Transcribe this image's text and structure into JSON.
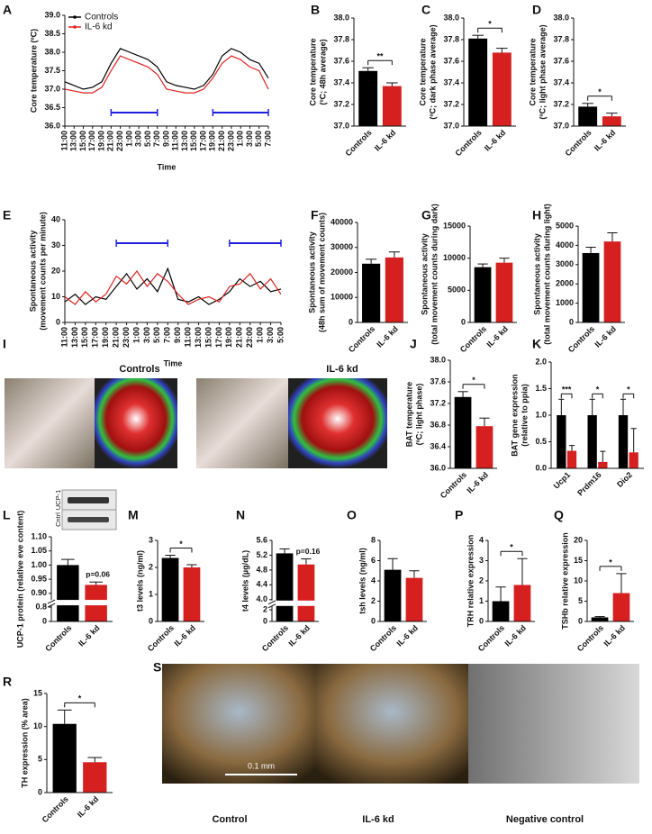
{
  "chart_data": [
    {
      "type": "line",
      "panel": "A",
      "y_label": [
        "Core temperature (ºC)"
      ],
      "x_label": "Time",
      "legend": "top-left",
      "categories": [
        "11:00",
        "13:00",
        "15:00",
        "17:00",
        "19:00",
        "21:00",
        "23:00",
        "1:00",
        "3:00",
        "5:00",
        "7:00",
        "9:00",
        "11:00",
        "13:00",
        "15:00",
        "17:00",
        "19:00",
        "21:00",
        "23:00",
        "1:00",
        "3:00",
        "5:00",
        "7:00"
      ],
      "series": [
        {
          "name": "Controls",
          "color": "#000000",
          "values": [
            37.2,
            37.1,
            37.0,
            37.05,
            37.2,
            37.7,
            38.1,
            38.0,
            37.9,
            37.8,
            37.6,
            37.2,
            37.1,
            37.05,
            37.0,
            37.1,
            37.4,
            37.9,
            38.1,
            38.0,
            37.8,
            37.7,
            37.3
          ]
        },
        {
          "name": "IL-6 kd",
          "color": "#e02020",
          "values": [
            37.0,
            36.95,
            36.9,
            36.9,
            37.05,
            37.5,
            37.9,
            37.8,
            37.7,
            37.6,
            37.4,
            37.0,
            36.95,
            36.9,
            36.9,
            37.0,
            37.3,
            37.7,
            37.9,
            37.8,
            37.6,
            37.5,
            37.0
          ]
        }
      ],
      "ylim": [
        36.0,
        39.0
      ],
      "yticks": [
        {
          "value": 36.0,
          "label": "36.0"
        },
        {
          "value": 36.5,
          "label": "36.5"
        },
        {
          "value": 37.0,
          "label": "37.0"
        },
        {
          "value": 37.5,
          "label": "37.5"
        },
        {
          "value": 38.0,
          "label": "38.0"
        },
        {
          "value": 38.5,
          "label": "38.5"
        },
        {
          "value": 39.0,
          "label": "39.0"
        }
      ]
    },
    {
      "type": "bar",
      "panel": "B",
      "y_label": [
        "Core temperature",
        "(ºC; 48h average)"
      ],
      "categories": [
        "Controls",
        "IL-6 kd"
      ],
      "values": [
        37.51,
        37.37
      ],
      "errors": [
        0.03,
        0.03
      ],
      "colors": [
        "#000000",
        "#d62020"
      ],
      "significance": "**",
      "ylim": [
        37.0,
        38.0
      ],
      "yticks": [
        {
          "value": 37.0,
          "label": "37.0"
        },
        {
          "value": 37.2,
          "label": "37.2"
        },
        {
          "value": 37.4,
          "label": "37.4"
        },
        {
          "value": 37.6,
          "label": "37.6"
        },
        {
          "value": 37.8,
          "label": "37.8"
        },
        {
          "value": 38.0,
          "label": "38.0"
        }
      ]
    },
    {
      "type": "bar",
      "panel": "C",
      "y_label": [
        "Core temperature",
        "(ºC; dark phase average)"
      ],
      "categories": [
        "Controls",
        "IL-6 kd"
      ],
      "values": [
        37.81,
        37.68
      ],
      "errors": [
        0.03,
        0.04
      ],
      "colors": [
        "#000000",
        "#d62020"
      ],
      "significance": "*",
      "ylim": [
        37.0,
        38.0
      ],
      "yticks": [
        {
          "value": 37.0,
          "label": "37.0"
        },
        {
          "value": 37.2,
          "label": "37.2"
        },
        {
          "value": 37.4,
          "label": "37.4"
        },
        {
          "value": 37.6,
          "label": "37.6"
        },
        {
          "value": 37.8,
          "label": "37.8"
        },
        {
          "value": 38.0,
          "label": "38.0"
        }
      ]
    },
    {
      "type": "bar",
      "panel": "D",
      "y_label": [
        "Core temperature",
        "(ºC; light phase average)"
      ],
      "categories": [
        "Controls",
        "IL-6 kd"
      ],
      "values": [
        37.18,
        37.09
      ],
      "errors": [
        0.03,
        0.03
      ],
      "colors": [
        "#000000",
        "#d62020"
      ],
      "significance": "*",
      "ylim": [
        37.0,
        38.0
      ],
      "yticks": [
        {
          "value": 37.0,
          "label": "37.0"
        },
        {
          "value": 37.2,
          "label": "37.2"
        },
        {
          "value": 37.4,
          "label": "37.4"
        },
        {
          "value": 37.6,
          "label": "37.6"
        },
        {
          "value": 37.8,
          "label": "37.8"
        },
        {
          "value": 38.0,
          "label": "38.0"
        }
      ]
    },
    {
      "type": "line",
      "panel": "E",
      "y_label": [
        "Spontaneous activity",
        "(movement counts per minute)"
      ],
      "x_label": "Time",
      "categories": [
        "11:00",
        "13:00",
        "15:00",
        "17:00",
        "19:00",
        "21:00",
        "23:00",
        "1:00",
        "3:00",
        "5:00",
        "7:00",
        "9:00",
        "11:00",
        "13:00",
        "15:00",
        "17:00",
        "19:00",
        "21:00",
        "23:00",
        "1:00",
        "3:00",
        "5:00"
      ],
      "series": [
        {
          "name": "Controls",
          "color": "#000000",
          "values": [
            8,
            11,
            7,
            10,
            9,
            14,
            19,
            13,
            17,
            12,
            21,
            9,
            8,
            10,
            7,
            9,
            12,
            17,
            14,
            16,
            12,
            13
          ]
        },
        {
          "name": "IL-6 kd",
          "color": "#e02020",
          "values": [
            10,
            7,
            12,
            8,
            11,
            18,
            15,
            20,
            14,
            19,
            16,
            11,
            7,
            9,
            10,
            8,
            14,
            15,
            19,
            13,
            17,
            11
          ]
        }
      ],
      "ylim": [
        0,
        40
      ],
      "yticks": [
        0,
        10,
        20,
        30,
        40
      ]
    },
    {
      "type": "bar",
      "panel": "F",
      "y_label": [
        "Spontaneous activity",
        "(48h sum of movement counts)"
      ],
      "categories": [
        "Controls",
        "IL-6 kd"
      ],
      "values": [
        23500,
        26000
      ],
      "errors": [
        1800,
        2200
      ],
      "colors": [
        "#000000",
        "#d62020"
      ],
      "ylim": [
        0,
        40000
      ],
      "yticks": [
        0,
        10000,
        20000,
        30000,
        40000
      ]
    },
    {
      "type": "bar",
      "panel": "G",
      "y_label": [
        "Spontaneous activity",
        "(total movement counts during dark)"
      ],
      "categories": [
        "Controls",
        "IL-6 kd"
      ],
      "values": [
        8600,
        9300
      ],
      "errors": [
        500,
        700
      ],
      "colors": [
        "#000000",
        "#d62020"
      ],
      "ylim": [
        0,
        15000
      ],
      "yticks": [
        0,
        5000,
        10000,
        15000
      ]
    },
    {
      "type": "bar",
      "panel": "H",
      "y_label": [
        "Spontaneous activity",
        "(total movement counts during light)"
      ],
      "categories": [
        "Controls",
        "IL-6 kd"
      ],
      "values": [
        3600,
        4200
      ],
      "errors": [
        300,
        450
      ],
      "colors": [
        "#000000",
        "#d62020"
      ],
      "ylim": [
        0,
        5000
      ],
      "yticks": [
        0,
        1000,
        2000,
        3000,
        4000,
        5000
      ]
    },
    {
      "type": "bar",
      "panel": "J",
      "y_label": [
        "BAT temperature",
        "(ºC; light phase)"
      ],
      "categories": [
        "Controls",
        "IL-6 kd"
      ],
      "values": [
        37.32,
        36.78
      ],
      "errors": [
        0.1,
        0.15
      ],
      "colors": [
        "#000000",
        "#d62020"
      ],
      "significance": "*",
      "ylim": [
        36.0,
        38.0
      ],
      "yticks": [
        {
          "value": 36.0,
          "label": "36.0"
        },
        {
          "value": 36.4,
          "label": "36.4"
        },
        {
          "value": 36.8,
          "label": "36.8"
        },
        {
          "value": 37.2,
          "label": "37.2"
        },
        {
          "value": 37.6,
          "label": "37.6"
        },
        {
          "value": 38.0,
          "label": "38.0"
        }
      ]
    },
    {
      "type": "bar",
      "panel": "K",
      "y_label": [
        "BAT gene expression",
        "(relative to ppia)"
      ],
      "categories": [
        "Ucp1",
        "Prdm16",
        "Dio2"
      ],
      "series": [
        {
          "name": "Controls",
          "color": "#000000",
          "values": [
            1.0,
            1.0,
            1.0
          ],
          "errors": [
            0.3,
            0.3,
            0.3
          ]
        },
        {
          "name": "IL-6 kd",
          "color": "#d62020",
          "values": [
            0.33,
            0.12,
            0.3
          ],
          "errors": [
            0.1,
            0.2,
            0.45
          ]
        }
      ],
      "significance": [
        "***",
        "*",
        "*"
      ],
      "ylim": [
        0,
        2.0
      ],
      "yticks": [
        {
          "value": 0,
          "label": "0.0"
        },
        {
          "value": 0.5,
          "label": "0.5"
        },
        {
          "value": 1.0,
          "label": "1.0"
        },
        {
          "value": 1.5,
          "label": "1.5"
        },
        {
          "value": 2.0,
          "label": "2.0"
        }
      ]
    },
    {
      "type": "bar",
      "panel": "L",
      "y_label": [
        "UCP-1 protein (relative eve content)"
      ],
      "categories": [
        "Controls",
        "IL-6 kd"
      ],
      "values": [
        1.0,
        0.93
      ],
      "errors": [
        0.02,
        0.01
      ],
      "colors": [
        "#000000",
        "#d62020"
      ],
      "annotation": "p=0.06",
      "inset_labels": [
        "UCP-1",
        "Cntrl"
      ],
      "ylim": [
        0.88,
        1.1
      ],
      "yticks": [
        {
          "value": 0.9,
          "label": "0.90"
        },
        {
          "value": 0.95,
          "label": "0.95"
        },
        {
          "value": 1.0,
          "label": "1.00"
        },
        {
          "value": 1.05,
          "label": "1.05"
        },
        {
          "value": 1.1,
          "label": "1.10"
        }
      ],
      "ylim_lower": [
        0,
        0.85
      ],
      "yticks_lower": [
        0,
        0.8
      ]
    },
    {
      "type": "bar",
      "panel": "M",
      "y_label": [
        "t3 levels (ng/ml)"
      ],
      "categories": [
        "Controls",
        "IL-6 kd"
      ],
      "values": [
        2.35,
        2.0
      ],
      "errors": [
        0.1,
        0.1
      ],
      "colors": [
        "#000000",
        "#d62020"
      ],
      "significance": "*",
      "ylim": [
        0,
        3
      ],
      "yticks": [
        0,
        1,
        2,
        3
      ]
    },
    {
      "type": "bar",
      "panel": "N",
      "y_label": [
        "t4 levels (µg/dL)"
      ],
      "categories": [
        "Controls",
        "IL-6 kd"
      ],
      "values": [
        5.25,
        4.95
      ],
      "errors": [
        0.12,
        0.15
      ],
      "colors": [
        "#000000",
        "#d62020"
      ],
      "annotation": "p=0.16",
      "ylim": [
        4.0,
        5.6
      ],
      "yticks": [
        {
          "value": 4.0,
          "label": "4.0"
        },
        {
          "value": 4.4,
          "label": "4.4"
        },
        {
          "value": 4.8,
          "label": "4.8"
        },
        {
          "value": 5.2,
          "label": "5.2"
        },
        {
          "value": 5.6,
          "label": "5.6"
        }
      ],
      "ylim_lower": [
        0,
        2.5
      ],
      "yticks_lower": [
        0,
        2
      ]
    },
    {
      "type": "bar",
      "panel": "O",
      "y_label": [
        "tsh levels (ng/ml)"
      ],
      "categories": [
        "Controls",
        "IL-6 kd"
      ],
      "values": [
        5.1,
        4.3
      ],
      "errors": [
        1.1,
        0.7
      ],
      "colors": [
        "#000000",
        "#d62020"
      ],
      "ylim": [
        0,
        8
      ],
      "yticks": [
        0,
        2,
        4,
        6,
        8
      ]
    },
    {
      "type": "bar",
      "panel": "P",
      "y_label": [
        "TRH relative expression"
      ],
      "categories": [
        "Controls",
        "IL-6 kd"
      ],
      "values": [
        1.0,
        1.8
      ],
      "errors": [
        0.7,
        1.3
      ],
      "colors": [
        "#000000",
        "#d62020"
      ],
      "significance": "*",
      "ylim": [
        0,
        4
      ],
      "yticks": [
        0,
        1,
        2,
        3,
        4
      ]
    },
    {
      "type": "bar",
      "panel": "Q",
      "y_label": [
        "TSHb relative expression"
      ],
      "categories": [
        "Controls",
        "IL-6 kd"
      ],
      "values": [
        1.0,
        7.0
      ],
      "errors": [
        0.2,
        4.8
      ],
      "colors": [
        "#000000",
        "#d62020"
      ],
      "significance": "*",
      "ylim": [
        0,
        20
      ],
      "yticks": [
        0,
        5,
        10,
        15,
        20
      ]
    },
    {
      "type": "bar",
      "panel": "R",
      "y_label": [
        "TH expression (% area)"
      ],
      "categories": [
        "Controls",
        "IL-6 kd"
      ],
      "values": [
        10.4,
        4.6
      ],
      "errors": [
        2.1,
        0.7
      ],
      "colors": [
        "#000000",
        "#d62020"
      ],
      "significance": "*",
      "ylim": [
        0,
        15
      ],
      "yticks": [
        0,
        5,
        10,
        15
      ]
    }
  ],
  "images": [
    {
      "panel": "I",
      "labels": [
        "Controls",
        "IL-6 kd"
      ]
    },
    {
      "panel": "S",
      "labels": [
        "Control",
        "IL-6 kd",
        "Negative control"
      ],
      "scale_bar": "0.1 mm"
    }
  ]
}
